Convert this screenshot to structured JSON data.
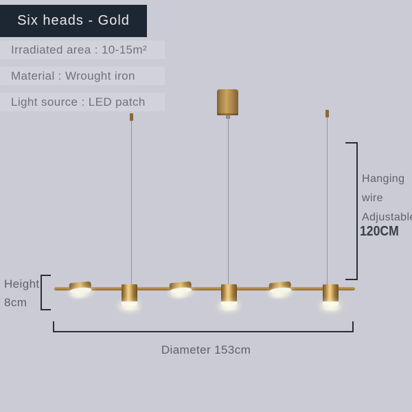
{
  "badge": {
    "label": "Six heads - Gold"
  },
  "specs": [
    {
      "label": "Irradiated area : 10-15m²"
    },
    {
      "label": "Material : Wrought iron"
    },
    {
      "label": "Light source : LED patch"
    }
  ],
  "annotations": {
    "hanging_wire": {
      "line1": "Hanging",
      "line2": "wire",
      "line3": "Adjustable",
      "value": "120CM"
    },
    "height": {
      "label": "Height",
      "value": "8cm"
    },
    "diameter": {
      "label": "Diameter 153cm"
    }
  },
  "colors": {
    "background": "#cacbd4",
    "badge_background": "#1d2733",
    "badge_text": "#e7e8eb",
    "spec_text": "#6e727d",
    "dimension_line": "#2b2e35",
    "dimension_text": "#5e626d",
    "gold_body": "#b68c49",
    "gold_highlight": "#f0d089",
    "lamp_glow": "#fbf7ea"
  }
}
